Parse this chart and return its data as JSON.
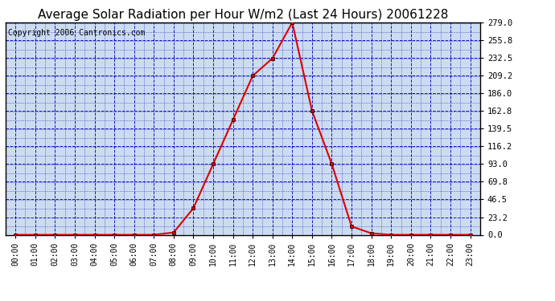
{
  "title": "Average Solar Radiation per Hour W/m2 (Last 24 Hours) 20061228",
  "copyright": "Copyright 2006 Cantronics.com",
  "hours": [
    "00:00",
    "01:00",
    "02:00",
    "03:00",
    "04:00",
    "05:00",
    "06:00",
    "07:00",
    "08:00",
    "09:00",
    "10:00",
    "11:00",
    "12:00",
    "13:00",
    "14:00",
    "15:00",
    "16:00",
    "17:00",
    "18:00",
    "19:00",
    "20:00",
    "21:00",
    "22:00",
    "23:00"
  ],
  "values": [
    0,
    0,
    0,
    0,
    0,
    0,
    0,
    0,
    3,
    35,
    93,
    151,
    209,
    232,
    279,
    163,
    93,
    11,
    2,
    0,
    0,
    0,
    0,
    0
  ],
  "ylim": [
    0,
    279.0
  ],
  "yticks": [
    0.0,
    23.2,
    46.5,
    69.8,
    93.0,
    116.2,
    139.5,
    162.8,
    186.0,
    209.2,
    232.5,
    255.8,
    279.0
  ],
  "line_color": "#dd0000",
  "marker_color": "#000000",
  "bg_color": "#ccdcf0",
  "grid_color": "#0000bb",
  "border_color": "#000000",
  "title_fontsize": 11,
  "copyright_fontsize": 7
}
